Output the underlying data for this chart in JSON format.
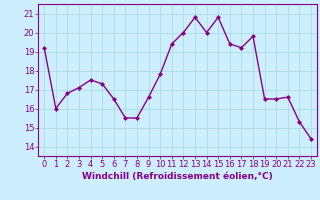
{
  "x": [
    0,
    1,
    2,
    3,
    4,
    5,
    6,
    7,
    8,
    9,
    10,
    11,
    12,
    13,
    14,
    15,
    16,
    17,
    18,
    19,
    20,
    21,
    22,
    23
  ],
  "y": [
    19.2,
    16.0,
    16.8,
    17.1,
    17.5,
    17.3,
    16.5,
    15.5,
    15.5,
    16.6,
    17.8,
    19.4,
    20.0,
    20.8,
    20.0,
    20.8,
    19.4,
    19.2,
    19.8,
    16.5,
    16.5,
    16.6,
    15.3,
    14.4
  ],
  "line_color": "#880088",
  "marker": "D",
  "markersize": 2,
  "linewidth": 1.0,
  "bg_color": "#cceeff",
  "grid_color": "#aadddd",
  "xlabel": "Windchill (Refroidissement éolien,°C)",
  "xlim": [
    -0.5,
    23.5
  ],
  "ylim": [
    13.5,
    21.5
  ],
  "yticks": [
    14,
    15,
    16,
    17,
    18,
    19,
    20,
    21
  ],
  "xticks": [
    0,
    1,
    2,
    3,
    4,
    5,
    6,
    7,
    8,
    9,
    10,
    11,
    12,
    13,
    14,
    15,
    16,
    17,
    18,
    19,
    20,
    21,
    22,
    23
  ],
  "xlabel_fontsize": 6.5,
  "tick_fontsize": 6,
  "tick_color": "#880088",
  "axis_color": "#880088",
  "spine_color": "#880088"
}
